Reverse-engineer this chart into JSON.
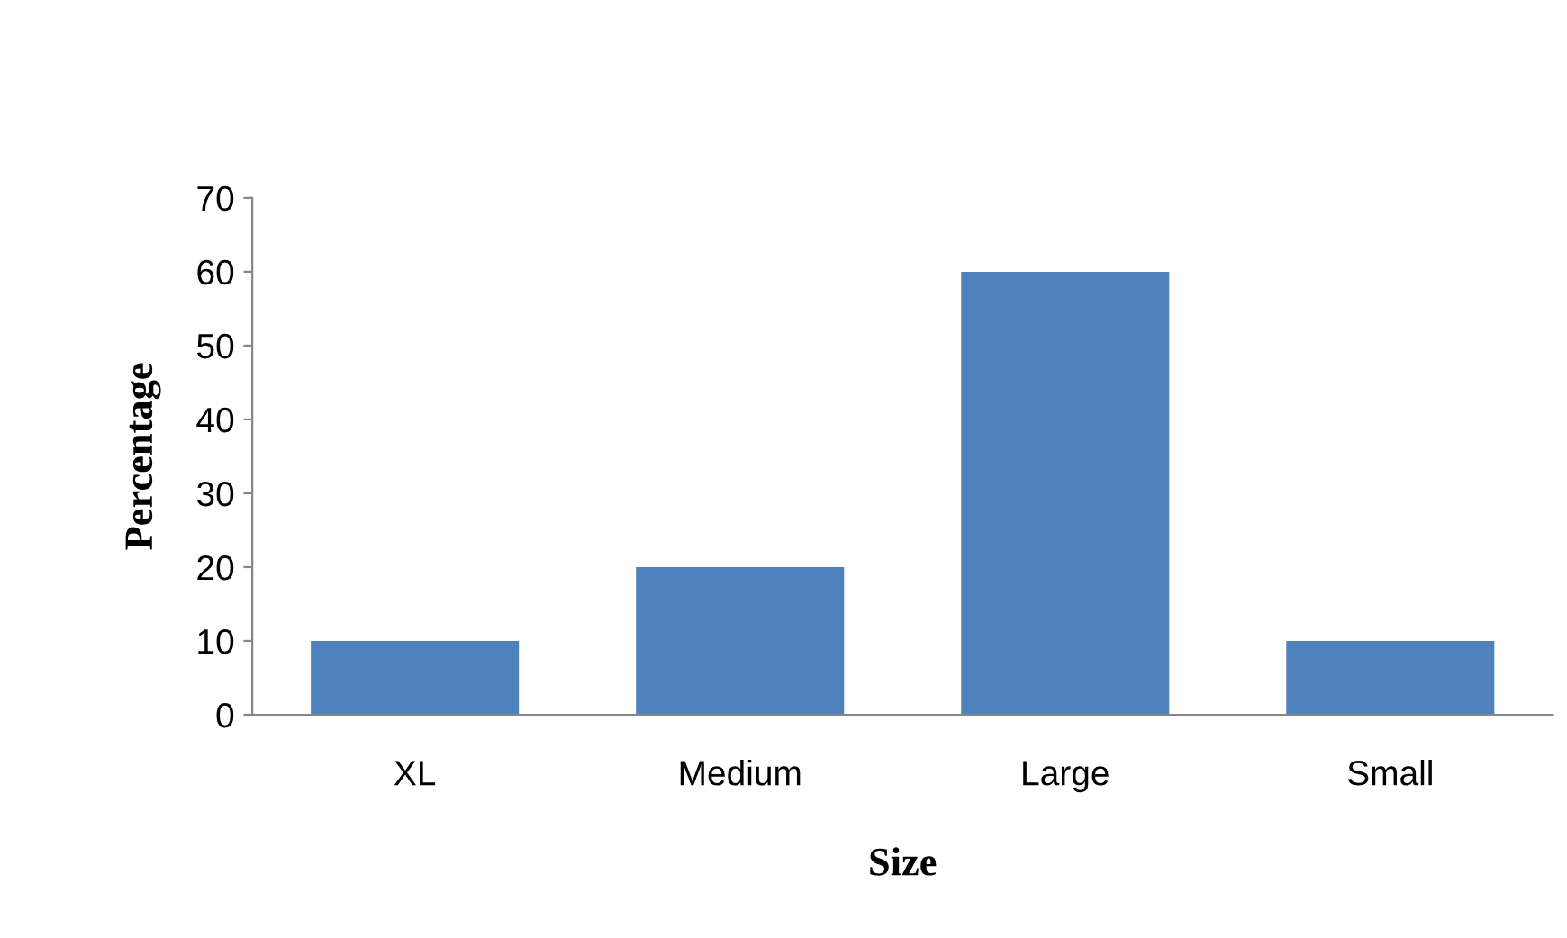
{
  "chart_data": {
    "type": "bar",
    "xlabel": "Size",
    "ylabel": "Percentage",
    "categories": [
      "XL",
      "Medium",
      "Large",
      "Small"
    ],
    "values": [
      10,
      20,
      60,
      10
    ],
    "color": "#4f81bd",
    "ylim": [
      0,
      70
    ],
    "yticks": [
      0,
      10,
      20,
      30,
      40,
      50,
      60,
      70
    ],
    "grid": false
  }
}
